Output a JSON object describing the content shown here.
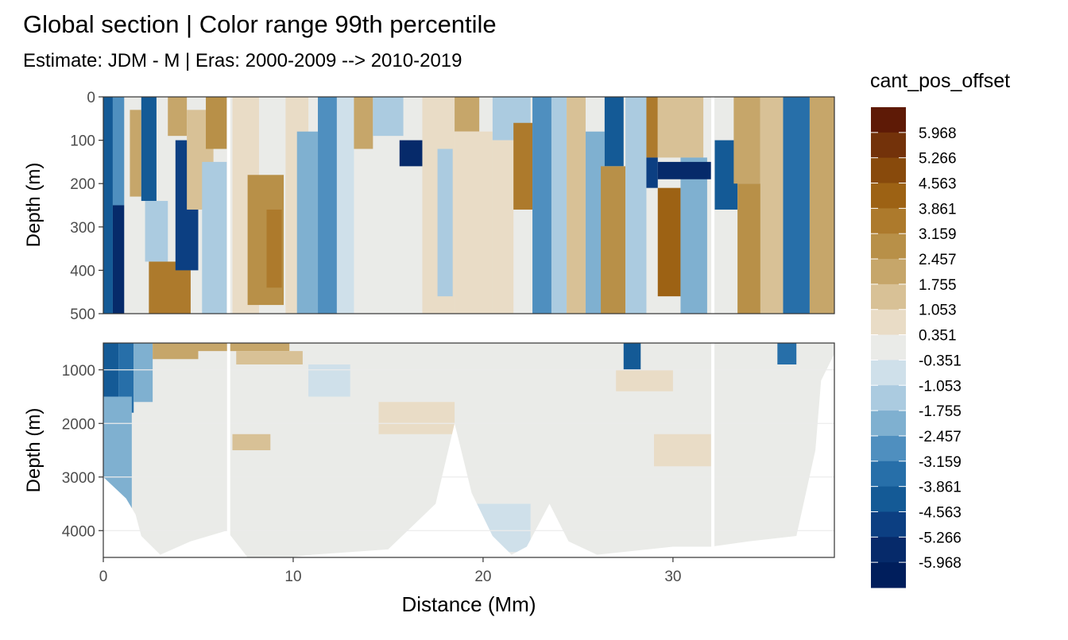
{
  "chart_data": {
    "type": "heatmap",
    "title": "Global section | Color range 99th percentile",
    "subtitle": "Estimate: JDM - M | Eras: 2000-2009 --> 2010-2019",
    "xlabel": "Distance (Mm)",
    "ylabel": "Depth (m)",
    "xlim": [
      0,
      38.5
    ],
    "x_ticks": [
      0,
      10,
      20,
      30
    ],
    "grid": true,
    "legend_position": "right",
    "legend": {
      "title": "cant_pos_offset",
      "labels": [
        "5.968",
        "5.266",
        "4.563",
        "3.861",
        "3.159",
        "2.457",
        "1.755",
        "1.053",
        "0.351",
        "-0.351",
        "-1.053",
        "-1.755",
        "-2.457",
        "-3.159",
        "-3.861",
        "-4.563",
        "-5.266",
        "-5.968"
      ],
      "colors": [
        "#5e1a06",
        "#73320a",
        "#884a0c",
        "#9d6214",
        "#ad7a2c",
        "#b89048",
        "#c6a66a",
        "#d8c196",
        "#e9dcc6",
        "#eaebe8",
        "#cfe0ea",
        "#abcbe0",
        "#7fb0d0",
        "#4f8fbf",
        "#276fa9",
        "#145a96",
        "#0c3f82",
        "#062a6a",
        "#001e5c"
      ]
    },
    "panels": [
      {
        "name": "upper",
        "ylim": [
          500,
          0
        ],
        "y_ticks": [
          0,
          100,
          200,
          300,
          400,
          500
        ]
      },
      {
        "name": "lower",
        "ylim": [
          4500,
          500
        ],
        "y_ticks": [
          1000,
          2000,
          3000,
          4000
        ]
      }
    ],
    "gaps_at_distance": [
      6.6,
      32.1
    ],
    "bottom_bathymetry": [
      [
        1.2,
        3400
      ],
      [
        1.7,
        3700
      ],
      [
        2.0,
        4100
      ],
      [
        3.0,
        4450
      ],
      [
        4.6,
        4200
      ],
      [
        6.5,
        4000
      ],
      [
        7.6,
        4500
      ],
      [
        9.8,
        4500
      ],
      [
        11.0,
        4450
      ],
      [
        15.0,
        4350
      ],
      [
        17.5,
        3500
      ],
      [
        18.5,
        2000
      ],
      [
        19.4,
        3300
      ],
      [
        20.5,
        4100
      ],
      [
        21.5,
        4450
      ],
      [
        22.3,
        4300
      ],
      [
        23.5,
        3500
      ],
      [
        24.5,
        4200
      ],
      [
        26.0,
        4450
      ],
      [
        30.0,
        4300
      ],
      [
        32.0,
        4300
      ],
      [
        34.0,
        4200
      ],
      [
        36.5,
        4100
      ],
      [
        37.5,
        2500
      ],
      [
        37.8,
        1200
      ]
    ],
    "field": [
      {
        "x0": 0.0,
        "x1": 0.5,
        "d0": 0,
        "d1": 500,
        "v": -4.5
      },
      {
        "x0": 0.5,
        "x1": 1.1,
        "d0": 0,
        "d1": 250,
        "v": -2.8
      },
      {
        "x0": 0.5,
        "x1": 1.1,
        "d0": 250,
        "d1": 500,
        "v": -5.6
      },
      {
        "x0": 0.0,
        "x1": 0.8,
        "d0": 500,
        "d1": 1500,
        "v": -4.2
      },
      {
        "x0": 0.8,
        "x1": 1.6,
        "d0": 500,
        "d1": 1800,
        "v": -3.2
      },
      {
        "x0": 1.6,
        "x1": 2.6,
        "d0": 500,
        "d1": 1600,
        "v": -1.8
      },
      {
        "x0": 0.0,
        "x1": 1.5,
        "d0": 1500,
        "d1": 3600,
        "v": -2.4
      },
      {
        "x0": 1.4,
        "x1": 2.0,
        "d0": 30,
        "d1": 230,
        "v": 1.8
      },
      {
        "x0": 2.0,
        "x1": 2.8,
        "d0": 0,
        "d1": 240,
        "v": -4.2
      },
      {
        "x0": 2.2,
        "x1": 3.4,
        "d0": 240,
        "d1": 380,
        "v": -1.2
      },
      {
        "x0": 2.4,
        "x1": 4.6,
        "d0": 380,
        "d1": 500,
        "v": 3.6
      },
      {
        "x0": 3.4,
        "x1": 4.4,
        "d0": 0,
        "d1": 90,
        "v": 2.2
      },
      {
        "x0": 3.8,
        "x1": 5.0,
        "d0": 100,
        "d1": 400,
        "v": -4.6
      },
      {
        "x0": 4.4,
        "x1": 5.8,
        "d0": 30,
        "d1": 260,
        "v": 1.4
      },
      {
        "x0": 5.4,
        "x1": 6.5,
        "d0": 0,
        "d1": 120,
        "v": 2.6
      },
      {
        "x0": 5.2,
        "x1": 6.5,
        "d0": 150,
        "d1": 500,
        "v": -1.6
      },
      {
        "x0": 2.6,
        "x1": 5.0,
        "d0": 500,
        "d1": 800,
        "v": 2.0
      },
      {
        "x0": 6.8,
        "x1": 8.2,
        "d0": 0,
        "d1": 500,
        "v": 0.8
      },
      {
        "x0": 7.6,
        "x1": 9.5,
        "d0": 180,
        "d1": 480,
        "v": 2.5
      },
      {
        "x0": 8.6,
        "x1": 9.4,
        "d0": 260,
        "d1": 440,
        "v": 3.2
      },
      {
        "x0": 9.6,
        "x1": 10.8,
        "d0": 0,
        "d1": 500,
        "v": 0.4
      },
      {
        "x0": 10.2,
        "x1": 11.3,
        "d0": 80,
        "d1": 500,
        "v": -1.8
      },
      {
        "x0": 11.3,
        "x1": 12.3,
        "d0": 0,
        "d1": 500,
        "v": -3.1
      },
      {
        "x0": 12.3,
        "x1": 13.2,
        "d0": 0,
        "d1": 500,
        "v": -1.0
      },
      {
        "x0": 13.2,
        "x1": 14.2,
        "d0": 0,
        "d1": 120,
        "v": 2.4
      },
      {
        "x0": 13.4,
        "x1": 16.8,
        "d0": 120,
        "d1": 500,
        "v": 0.0
      },
      {
        "x0": 15.6,
        "x1": 17.5,
        "d0": 100,
        "d1": 160,
        "v": -5.7
      },
      {
        "x0": 14.2,
        "x1": 15.8,
        "d0": 0,
        "d1": 90,
        "v": -1.6
      },
      {
        "x0": 16.8,
        "x1": 18.5,
        "d0": 0,
        "d1": 500,
        "v": 0.5
      },
      {
        "x0": 17.6,
        "x1": 18.4,
        "d0": 120,
        "d1": 460,
        "v": -1.3
      },
      {
        "x0": 18.5,
        "x1": 19.8,
        "d0": 0,
        "d1": 80,
        "v": 2.0
      },
      {
        "x0": 18.5,
        "x1": 20.5,
        "d0": 80,
        "d1": 500,
        "v": 0.6
      },
      {
        "x0": 20.5,
        "x1": 22.5,
        "d0": 0,
        "d1": 100,
        "v": -1.4
      },
      {
        "x0": 20.5,
        "x1": 21.6,
        "d0": 100,
        "d1": 500,
        "v": 1.0
      },
      {
        "x0": 21.6,
        "x1": 22.6,
        "d0": 60,
        "d1": 260,
        "v": 3.3
      },
      {
        "x0": 22.6,
        "x1": 23.6,
        "d0": 0,
        "d1": 500,
        "v": -2.6
      },
      {
        "x0": 23.6,
        "x1": 24.4,
        "d0": 0,
        "d1": 500,
        "v": -1.6
      },
      {
        "x0": 24.4,
        "x1": 25.4,
        "d0": 0,
        "d1": 500,
        "v": 1.6
      },
      {
        "x0": 25.4,
        "x1": 26.4,
        "d0": 80,
        "d1": 500,
        "v": -2.4
      },
      {
        "x0": 26.4,
        "x1": 27.4,
        "d0": 0,
        "d1": 160,
        "v": -4.2
      },
      {
        "x0": 26.2,
        "x1": 27.5,
        "d0": 160,
        "d1": 500,
        "v": 2.8
      },
      {
        "x0": 27.5,
        "x1": 28.6,
        "d0": 0,
        "d1": 500,
        "v": -1.5
      },
      {
        "x0": 28.6,
        "x1": 29.2,
        "d0": 0,
        "d1": 140,
        "v": 3.4
      },
      {
        "x0": 28.6,
        "x1": 29.2,
        "d0": 140,
        "d1": 210,
        "v": -4.6
      },
      {
        "x0": 29.2,
        "x1": 30.4,
        "d0": 210,
        "d1": 460,
        "v": 3.9
      },
      {
        "x0": 29.2,
        "x1": 31.6,
        "d0": 0,
        "d1": 140,
        "v": 1.6
      },
      {
        "x0": 30.4,
        "x1": 31.8,
        "d0": 140,
        "d1": 500,
        "v": -2.2
      },
      {
        "x0": 29.2,
        "x1": 32.0,
        "d0": 150,
        "d1": 190,
        "v": -5.6
      },
      {
        "x0": 32.2,
        "x1": 33.4,
        "d0": 100,
        "d1": 260,
        "v": -4.4
      },
      {
        "x0": 33.2,
        "x1": 34.6,
        "d0": 0,
        "d1": 200,
        "v": 2.2
      },
      {
        "x0": 33.4,
        "x1": 34.8,
        "d0": 200,
        "d1": 500,
        "v": 3.1
      },
      {
        "x0": 34.6,
        "x1": 35.8,
        "d0": 0,
        "d1": 500,
        "v": 1.2
      },
      {
        "x0": 35.8,
        "x1": 37.2,
        "d0": 0,
        "d1": 500,
        "v": -3.6
      },
      {
        "x0": 37.2,
        "x1": 38.5,
        "d0": 0,
        "d1": 500,
        "v": 1.8
      },
      {
        "x0": 2.8,
        "x1": 9.8,
        "d0": 500,
        "d1": 650,
        "v": 2.2
      },
      {
        "x0": 7.0,
        "x1": 10.5,
        "d0": 650,
        "d1": 900,
        "v": 1.1
      },
      {
        "x0": 10.8,
        "x1": 13.0,
        "d0": 900,
        "d1": 1500,
        "v": -0.9
      },
      {
        "x0": 6.8,
        "x1": 8.8,
        "d0": 2200,
        "d1": 2500,
        "v": 1.1
      },
      {
        "x0": 14.5,
        "x1": 18.5,
        "d0": 1600,
        "d1": 2200,
        "v": 0.7
      },
      {
        "x0": 27.4,
        "x1": 28.3,
        "d0": 500,
        "d1": 1100,
        "v": -4.5
      },
      {
        "x0": 27.0,
        "x1": 30.0,
        "d0": 1000,
        "d1": 1400,
        "v": 0.6
      },
      {
        "x0": 29.0,
        "x1": 32.0,
        "d0": 2200,
        "d1": 2800,
        "v": 0.6
      },
      {
        "x0": 35.5,
        "x1": 36.5,
        "d0": 500,
        "d1": 900,
        "v": -3.5
      },
      {
        "x0": 19.5,
        "x1": 22.5,
        "d0": 3500,
        "d1": 4400,
        "v": -0.8
      }
    ]
  }
}
